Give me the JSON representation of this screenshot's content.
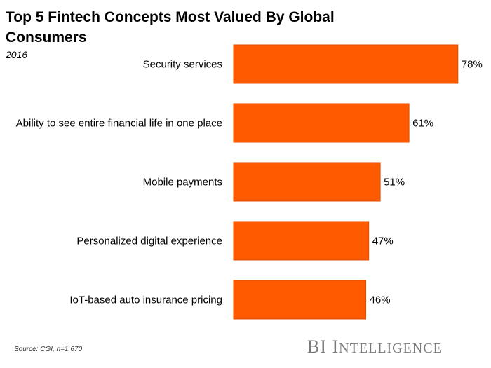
{
  "header": {
    "title": "Top 5 Fintech Concepts Most Valued By Global Consumers",
    "subtitle": "2016"
  },
  "footer": {
    "source": "Source: CGI, n=1,670",
    "brand_first": "BI",
    "brand_initial": "I",
    "brand_rest": "NTELLIGENCE"
  },
  "colors": {
    "bar": "#FF5A00",
    "bar_edge": "#E04E00"
  },
  "chart_data": {
    "type": "bar",
    "orientation": "horizontal",
    "title": "Top 5 Fintech Concepts Most Valued By Global Consumers",
    "subtitle": "2016",
    "categories": [
      "Security services",
      "Ability to see entire financial life in one place",
      "Mobile payments",
      "Personalized digital experience",
      "IoT-based auto insurance pricing"
    ],
    "values": [
      78,
      61,
      51,
      47,
      46
    ],
    "value_labels": [
      "78%",
      "61%",
      "51%",
      "47%",
      "46%"
    ],
    "unit": "%",
    "xlim": [
      0,
      100
    ],
    "grid": false
  }
}
